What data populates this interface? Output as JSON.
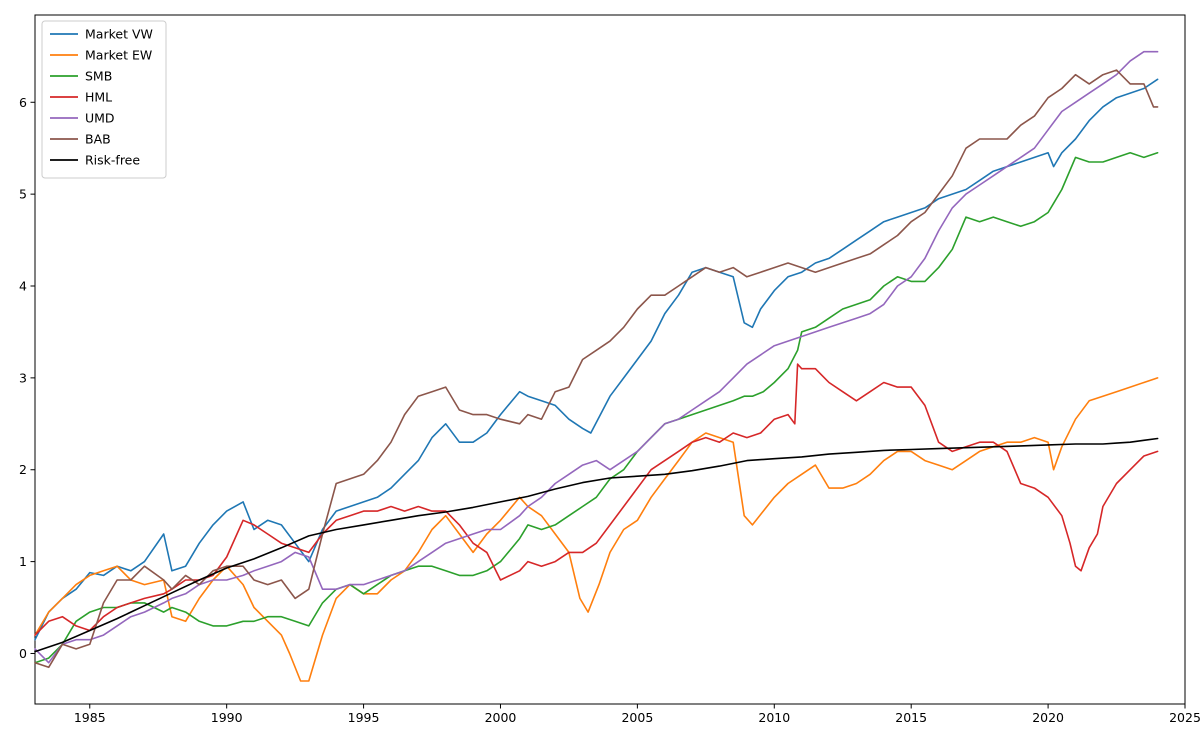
{
  "chart_data": {
    "type": "line",
    "title": "",
    "xlabel": "",
    "ylabel": "",
    "xlim": [
      1983,
      2025
    ],
    "ylim": [
      -0.55,
      6.95
    ],
    "xticks": [
      1985,
      1990,
      1995,
      2000,
      2005,
      2010,
      2015,
      2020,
      2025
    ],
    "yticks": [
      0,
      1,
      2,
      3,
      4,
      5,
      6
    ],
    "grid": false,
    "legend_position": "top-left",
    "series": [
      {
        "name": "Market VW",
        "color": "#1f77b4",
        "x": [
          1983,
          1983.5,
          1984,
          1984.5,
          1985,
          1985.5,
          1986,
          1986.5,
          1987,
          1987.7,
          1988,
          1988.5,
          1989,
          1989.5,
          1990,
          1990.6,
          1991,
          1991.5,
          1992,
          1992.5,
          1993,
          1993.5,
          1994,
          1994.5,
          1995,
          1995.5,
          1996,
          1996.5,
          1997,
          1997.5,
          1998,
          1998.5,
          1999,
          1999.5,
          2000,
          2000.7,
          2001,
          2001.5,
          2002,
          2002.5,
          2003,
          2003.3,
          2004,
          2004.5,
          2005,
          2005.5,
          2006,
          2006.5,
          2007,
          2007.5,
          2008,
          2008.5,
          2008.9,
          2009.2,
          2009.5,
          2010,
          2010.5,
          2011,
          2011.5,
          2012,
          2012.5,
          2013,
          2013.5,
          2014,
          2014.5,
          2015,
          2015.5,
          2016,
          2016.5,
          2017,
          2017.5,
          2018,
          2018.5,
          2019,
          2019.5,
          2020,
          2020.2,
          2020.5,
          2021,
          2021.5,
          2022,
          2022.5,
          2023,
          2023.5,
          2024
        ],
        "values": [
          0.15,
          0.45,
          0.6,
          0.7,
          0.88,
          0.85,
          0.95,
          0.9,
          1.0,
          1.3,
          0.9,
          0.95,
          1.2,
          1.4,
          1.55,
          1.65,
          1.35,
          1.45,
          1.4,
          1.2,
          1.0,
          1.35,
          1.55,
          1.6,
          1.65,
          1.7,
          1.8,
          1.95,
          2.1,
          2.35,
          2.5,
          2.3,
          2.3,
          2.4,
          2.6,
          2.85,
          2.8,
          2.75,
          2.7,
          2.55,
          2.45,
          2.4,
          2.8,
          3.0,
          3.2,
          3.4,
          3.7,
          3.9,
          4.15,
          4.2,
          4.15,
          4.1,
          3.6,
          3.55,
          3.75,
          3.95,
          4.1,
          4.15,
          4.25,
          4.3,
          4.4,
          4.5,
          4.6,
          4.7,
          4.75,
          4.8,
          4.85,
          4.95,
          5.0,
          5.05,
          5.15,
          5.25,
          5.3,
          5.35,
          5.4,
          5.45,
          5.3,
          5.45,
          5.6,
          5.8,
          5.95,
          6.05,
          6.1,
          6.15,
          6.25
        ]
      },
      {
        "name": "Market EW",
        "color": "#ff7f0e",
        "x": [
          1983,
          1983.5,
          1984,
          1984.5,
          1985,
          1985.5,
          1986,
          1986.5,
          1987,
          1987.7,
          1988,
          1988.5,
          1989,
          1989.5,
          1990,
          1990.6,
          1991,
          1991.5,
          1992,
          1992.3,
          1992.7,
          1993,
          1993.5,
          1994,
          1994.5,
          1995,
          1995.5,
          1996,
          1996.5,
          1997,
          1997.5,
          1998,
          1998.5,
          1999,
          1999.5,
          2000,
          2000.7,
          2001,
          2001.5,
          2002,
          2002.5,
          2002.9,
          2003.2,
          2003.6,
          2004,
          2004.5,
          2005,
          2005.5,
          2006,
          2006.5,
          2007,
          2007.5,
          2008,
          2008.5,
          2008.9,
          2009.2,
          2009.6,
          2010,
          2010.5,
          2011,
          2011.5,
          2012,
          2012.5,
          2013,
          2013.5,
          2014,
          2014.5,
          2015,
          2015.5,
          2016,
          2016.5,
          2017,
          2017.5,
          2018,
          2018.5,
          2019,
          2019.5,
          2020,
          2020.2,
          2020.5,
          2021,
          2021.5,
          2022,
          2022.5,
          2023,
          2023.5,
          2024
        ],
        "values": [
          0.2,
          0.45,
          0.6,
          0.75,
          0.85,
          0.9,
          0.95,
          0.8,
          0.75,
          0.8,
          0.4,
          0.35,
          0.6,
          0.8,
          0.95,
          0.75,
          0.5,
          0.35,
          0.2,
          0.0,
          -0.3,
          -0.3,
          0.2,
          0.6,
          0.75,
          0.65,
          0.65,
          0.8,
          0.9,
          1.1,
          1.35,
          1.5,
          1.3,
          1.1,
          1.3,
          1.45,
          1.7,
          1.6,
          1.5,
          1.3,
          1.1,
          0.6,
          0.45,
          0.75,
          1.1,
          1.35,
          1.45,
          1.7,
          1.9,
          2.1,
          2.3,
          2.4,
          2.35,
          2.3,
          1.5,
          1.4,
          1.55,
          1.7,
          1.85,
          1.95,
          2.05,
          1.8,
          1.8,
          1.85,
          1.95,
          2.1,
          2.2,
          2.2,
          2.1,
          2.05,
          2.0,
          2.1,
          2.2,
          2.25,
          2.3,
          2.3,
          2.35,
          2.3,
          2.0,
          2.25,
          2.55,
          2.75,
          2.8,
          2.85,
          2.9,
          2.95,
          3.0
        ]
      },
      {
        "name": "SMB",
        "color": "#2ca02c",
        "x": [
          1983,
          1983.5,
          1984,
          1984.5,
          1985,
          1985.5,
          1986,
          1986.5,
          1987,
          1987.7,
          1988,
          1988.5,
          1989,
          1989.5,
          1990,
          1990.6,
          1991,
          1991.5,
          1992,
          1992.5,
          1993,
          1993.5,
          1994,
          1994.5,
          1995,
          1995.5,
          1996,
          1996.5,
          1997,
          1997.5,
          1998,
          1998.5,
          1999,
          1999.5,
          2000,
          2000.7,
          2001,
          2001.5,
          2002,
          2002.5,
          2003,
          2003.5,
          2004,
          2004.5,
          2005,
          2005.5,
          2006,
          2006.5,
          2007,
          2007.5,
          2008,
          2008.5,
          2008.9,
          2009.2,
          2009.6,
          2010,
          2010.5,
          2010.85,
          2011,
          2011.5,
          2012,
          2012.5,
          2013,
          2013.5,
          2014,
          2014.5,
          2015,
          2015.5,
          2016,
          2016.5,
          2017,
          2017.5,
          2018,
          2018.5,
          2019,
          2019.5,
          2020,
          2020.2,
          2020.5,
          2021,
          2021.5,
          2022,
          2022.5,
          2023,
          2023.5,
          2024
        ],
        "values": [
          -0.1,
          -0.05,
          0.1,
          0.35,
          0.45,
          0.5,
          0.5,
          0.55,
          0.55,
          0.45,
          0.5,
          0.45,
          0.35,
          0.3,
          0.3,
          0.35,
          0.35,
          0.4,
          0.4,
          0.35,
          0.3,
          0.55,
          0.7,
          0.75,
          0.65,
          0.75,
          0.85,
          0.9,
          0.95,
          0.95,
          0.9,
          0.85,
          0.85,
          0.9,
          1.0,
          1.25,
          1.4,
          1.35,
          1.4,
          1.5,
          1.6,
          1.7,
          1.9,
          2.0,
          2.2,
          2.35,
          2.5,
          2.55,
          2.6,
          2.65,
          2.7,
          2.75,
          2.8,
          2.8,
          2.85,
          2.95,
          3.1,
          3.3,
          3.5,
          3.55,
          3.65,
          3.75,
          3.8,
          3.85,
          4.0,
          4.1,
          4.05,
          4.05,
          4.2,
          4.4,
          4.75,
          4.7,
          4.75,
          4.7,
          4.65,
          4.7,
          4.8,
          4.9,
          5.05,
          5.4,
          5.35,
          5.35,
          5.4,
          5.45,
          5.4,
          5.45
        ]
      },
      {
        "name": "HML",
        "color": "#d62728",
        "x": [
          1983,
          1983.5,
          1984,
          1984.5,
          1985,
          1985.5,
          1986,
          1986.5,
          1987,
          1987.7,
          1988,
          1988.5,
          1989,
          1989.5,
          1990,
          1990.6,
          1991,
          1991.5,
          1992,
          1992.5,
          1993,
          1993.5,
          1994,
          1994.5,
          1995,
          1995.5,
          1996,
          1996.5,
          1997,
          1997.5,
          1998,
          1998.5,
          1999,
          1999.5,
          2000,
          2000.7,
          2001,
          2001.5,
          2002,
          2002.5,
          2003,
          2003.5,
          2004,
          2004.5,
          2005,
          2005.5,
          2006,
          2006.5,
          2007,
          2007.5,
          2008,
          2008.5,
          2009,
          2009.5,
          2010,
          2010.5,
          2010.75,
          2010.85,
          2011,
          2011.5,
          2012,
          2012.5,
          2013,
          2013.5,
          2014,
          2014.5,
          2015,
          2015.5,
          2016,
          2016.5,
          2017,
          2017.5,
          2018,
          2018.5,
          2019,
          2019.5,
          2020,
          2020.5,
          2020.8,
          2021,
          2021.2,
          2021.5,
          2021.8,
          2022,
          2022.5,
          2023,
          2023.5,
          2024
        ],
        "values": [
          0.2,
          0.35,
          0.4,
          0.3,
          0.25,
          0.4,
          0.5,
          0.55,
          0.6,
          0.65,
          0.7,
          0.8,
          0.8,
          0.85,
          1.05,
          1.45,
          1.4,
          1.3,
          1.2,
          1.15,
          1.1,
          1.3,
          1.45,
          1.5,
          1.55,
          1.55,
          1.6,
          1.55,
          1.6,
          1.55,
          1.55,
          1.4,
          1.2,
          1.1,
          0.8,
          0.9,
          1.0,
          0.95,
          1.0,
          1.1,
          1.1,
          1.2,
          1.4,
          1.6,
          1.8,
          2.0,
          2.1,
          2.2,
          2.3,
          2.35,
          2.3,
          2.4,
          2.35,
          2.4,
          2.55,
          2.6,
          2.5,
          3.15,
          3.1,
          3.1,
          2.95,
          2.85,
          2.75,
          2.85,
          2.95,
          2.9,
          2.9,
          2.7,
          2.3,
          2.2,
          2.25,
          2.3,
          2.3,
          2.2,
          1.85,
          1.8,
          1.7,
          1.5,
          1.2,
          0.95,
          0.9,
          1.15,
          1.3,
          1.6,
          1.85,
          2.0,
          2.15,
          2.2
        ]
      },
      {
        "name": "UMD",
        "color": "#9467bd",
        "x": [
          1983,
          1983.5,
          1984,
          1984.5,
          1985,
          1985.5,
          1986,
          1986.5,
          1987,
          1987.7,
          1988,
          1988.5,
          1989,
          1989.5,
          1990,
          1990.6,
          1991,
          1991.5,
          1992,
          1992.5,
          1993,
          1993.5,
          1994,
          1994.5,
          1995,
          1995.5,
          1996,
          1996.5,
          1997,
          1997.5,
          1998,
          1998.5,
          1999,
          1999.5,
          2000,
          2000.7,
          2001,
          2001.5,
          2002,
          2002.5,
          2003,
          2003.5,
          2004,
          2004.5,
          2005,
          2005.5,
          2006,
          2006.5,
          2007,
          2007.5,
          2008,
          2008.5,
          2009,
          2009.5,
          2010,
          2010.5,
          2011,
          2011.5,
          2012,
          2012.5,
          2013,
          2013.5,
          2014,
          2014.5,
          2015,
          2015.5,
          2016,
          2016.5,
          2017,
          2017.5,
          2018,
          2018.5,
          2019,
          2019.5,
          2020,
          2020.5,
          2021,
          2021.5,
          2022,
          2022.5,
          2023,
          2023.5,
          2024
        ],
        "values": [
          0.05,
          -0.1,
          0.1,
          0.15,
          0.15,
          0.2,
          0.3,
          0.4,
          0.45,
          0.55,
          0.6,
          0.65,
          0.75,
          0.8,
          0.8,
          0.85,
          0.9,
          0.95,
          1.0,
          1.1,
          1.05,
          0.7,
          0.7,
          0.75,
          0.75,
          0.8,
          0.85,
          0.9,
          1.0,
          1.1,
          1.2,
          1.25,
          1.3,
          1.35,
          1.35,
          1.5,
          1.6,
          1.7,
          1.85,
          1.95,
          2.05,
          2.1,
          2.0,
          2.1,
          2.2,
          2.35,
          2.5,
          2.55,
          2.65,
          2.75,
          2.85,
          3.0,
          3.15,
          3.25,
          3.35,
          3.4,
          3.45,
          3.5,
          3.55,
          3.6,
          3.65,
          3.7,
          3.8,
          4.0,
          4.1,
          4.3,
          4.6,
          4.85,
          5.0,
          5.1,
          5.2,
          5.3,
          5.4,
          5.5,
          5.7,
          5.9,
          6.0,
          6.1,
          6.2,
          6.3,
          6.45,
          6.55,
          6.55
        ]
      },
      {
        "name": "BAB",
        "color": "#8c564b",
        "x": [
          1983,
          1983.5,
          1984,
          1984.5,
          1985,
          1985.5,
          1986,
          1986.5,
          1987,
          1987.7,
          1988,
          1988.5,
          1989,
          1989.5,
          1990,
          1990.6,
          1991,
          1991.5,
          1992,
          1992.5,
          1993,
          1993.5,
          1994,
          1994.5,
          1995,
          1995.5,
          1996,
          1996.5,
          1997,
          1997.5,
          1998,
          1998.5,
          1999,
          1999.5,
          2000,
          2000.7,
          2001,
          2001.5,
          2002,
          2002.5,
          2003,
          2003.5,
          2004,
          2004.5,
          2005,
          2005.5,
          2006,
          2006.5,
          2007,
          2007.5,
          2008,
          2008.5,
          2009,
          2009.5,
          2010,
          2010.5,
          2011,
          2011.5,
          2012,
          2012.5,
          2013,
          2013.5,
          2014,
          2014.5,
          2015,
          2015.5,
          2016,
          2016.5,
          2017,
          2017.5,
          2018,
          2018.5,
          2019,
          2019.5,
          2020,
          2020.5,
          2021,
          2021.5,
          2022,
          2022.5,
          2023,
          2023.5,
          2023.85,
          2024
        ],
        "values": [
          -0.1,
          -0.15,
          0.1,
          0.05,
          0.1,
          0.55,
          0.8,
          0.8,
          0.95,
          0.8,
          0.7,
          0.85,
          0.75,
          0.9,
          0.95,
          0.95,
          0.8,
          0.75,
          0.8,
          0.6,
          0.7,
          1.3,
          1.85,
          1.9,
          1.95,
          2.1,
          2.3,
          2.6,
          2.8,
          2.85,
          2.9,
          2.65,
          2.6,
          2.6,
          2.55,
          2.5,
          2.6,
          2.55,
          2.85,
          2.9,
          3.2,
          3.3,
          3.4,
          3.55,
          3.75,
          3.9,
          3.9,
          4.0,
          4.1,
          4.2,
          4.15,
          4.2,
          4.1,
          4.15,
          4.2,
          4.25,
          4.2,
          4.15,
          4.2,
          4.25,
          4.3,
          4.35,
          4.45,
          4.55,
          4.7,
          4.8,
          5.0,
          5.2,
          5.5,
          5.6,
          5.6,
          5.6,
          5.75,
          5.85,
          6.05,
          6.15,
          6.3,
          6.2,
          6.3,
          6.35,
          6.2,
          6.2,
          5.95,
          5.95
        ]
      },
      {
        "name": "Risk-free",
        "color": "#000000",
        "x": [
          1983,
          1984,
          1985,
          1986,
          1987,
          1988,
          1989,
          1990,
          1991,
          1992,
          1993,
          1994,
          1995,
          1996,
          1997,
          1998,
          1999,
          2000,
          2001,
          2002,
          2003,
          2004,
          2005,
          2006,
          2007,
          2008,
          2009,
          2010,
          2011,
          2012,
          2013,
          2014,
          2015,
          2016,
          2017,
          2018,
          2019,
          2020,
          2021,
          2022,
          2022.5,
          2023,
          2023.5,
          2024
        ],
        "values": [
          0.02,
          0.12,
          0.25,
          0.38,
          0.52,
          0.66,
          0.8,
          0.93,
          1.03,
          1.15,
          1.28,
          1.35,
          1.4,
          1.45,
          1.5,
          1.54,
          1.59,
          1.65,
          1.71,
          1.79,
          1.86,
          1.91,
          1.93,
          1.95,
          1.99,
          2.04,
          2.1,
          2.12,
          2.14,
          2.17,
          2.19,
          2.21,
          2.22,
          2.23,
          2.24,
          2.25,
          2.26,
          2.27,
          2.28,
          2.28,
          2.29,
          2.3,
          2.32,
          2.34
        ]
      }
    ]
  }
}
